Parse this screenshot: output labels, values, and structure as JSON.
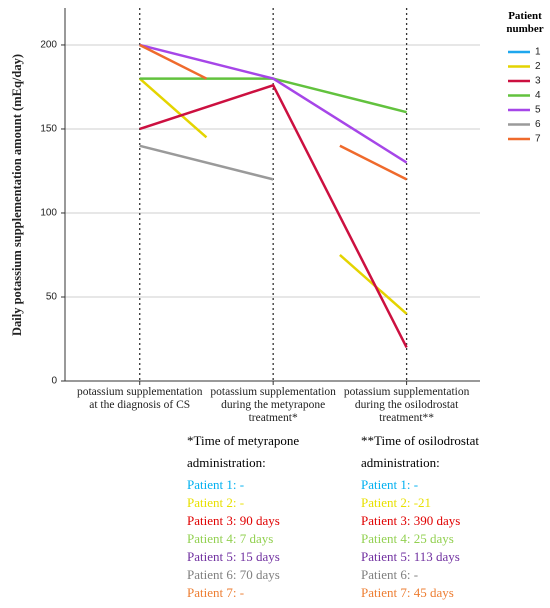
{
  "chart_data": {
    "type": "line",
    "ylabel": "Daily potassium supplementation amount (mEq/day)",
    "legend_title": "Patient number",
    "legend_position": "right",
    "grid": true,
    "xlim": [
      0.44,
      3.55
    ],
    "ylim": [
      0,
      222
    ],
    "yticks": [
      0,
      50,
      100,
      150,
      200
    ],
    "xticks": [
      {
        "value": 1,
        "label": "potassium supplementation at the diagnosis of CS"
      },
      {
        "value": 2,
        "label": "potassium supplementation during the metyrapone treatment*"
      },
      {
        "value": 3,
        "label": "potassium supplementation during the osilodrostat treatment**"
      }
    ],
    "series": [
      {
        "name": "1",
        "color": "#1ea7ee",
        "x": [],
        "values": []
      },
      {
        "name": "2",
        "color": "#e4d400",
        "x": [
          1,
          1.5,
          2,
          2.5,
          3
        ],
        "values": [
          180,
          145,
          null,
          75,
          40
        ]
      },
      {
        "name": "3",
        "color": "#cc1040",
        "x": [
          1,
          2,
          3
        ],
        "values": [
          150,
          176,
          20
        ]
      },
      {
        "name": "4",
        "color": "#62c23e",
        "x": [
          1,
          2,
          3
        ],
        "values": [
          180,
          180,
          160
        ]
      },
      {
        "name": "5",
        "color": "#a646e8",
        "x": [
          1,
          2,
          3
        ],
        "values": [
          200,
          180,
          130
        ]
      },
      {
        "name": "6",
        "color": "#9a9a9a",
        "x": [
          1,
          2
        ],
        "values": [
          140,
          120
        ]
      },
      {
        "name": "7",
        "color": "#ef6a2c",
        "x": [
          1,
          1.5,
          2,
          2.5,
          3
        ],
        "values": [
          200,
          180,
          null,
          140,
          120
        ]
      }
    ],
    "notes": [
      {
        "title_lines": [
          "*Time of metyrapone",
          "administration:"
        ],
        "items": [
          {
            "text": "Patient 1: -",
            "color": "#00b0f0"
          },
          {
            "text": "Patient 2: -",
            "color": "#e8e000"
          },
          {
            "text": "Patient 3: 90 days",
            "color": "#e00000"
          },
          {
            "text": "Patient 4: 7 days",
            "color": "#92d050"
          },
          {
            "text": "Patient 5: 15 days",
            "color": "#7030a0"
          },
          {
            "text": "Patient 6: 70 days",
            "color": "#7f7f7f"
          },
          {
            "text": "Patient 7: -",
            "color": "#ed7d31"
          }
        ]
      },
      {
        "title_lines": [
          "**Time of osilodrostat",
          "administration:"
        ],
        "items": [
          {
            "text": "Patient 1: -",
            "color": "#00b0f0"
          },
          {
            "text": "Patient 2: -21",
            "color": "#e8e000"
          },
          {
            "text": "Patient 3: 390 days",
            "color": "#e00000"
          },
          {
            "text": "Patient 4: 25 days",
            "color": "#92d050"
          },
          {
            "text": "Patient 5: 113 days",
            "color": "#7030a0"
          },
          {
            "text": "Patient 6: -",
            "color": "#7f7f7f"
          },
          {
            "text": "Patient 7: 45 days",
            "color": "#ed7d31"
          }
        ]
      }
    ]
  }
}
